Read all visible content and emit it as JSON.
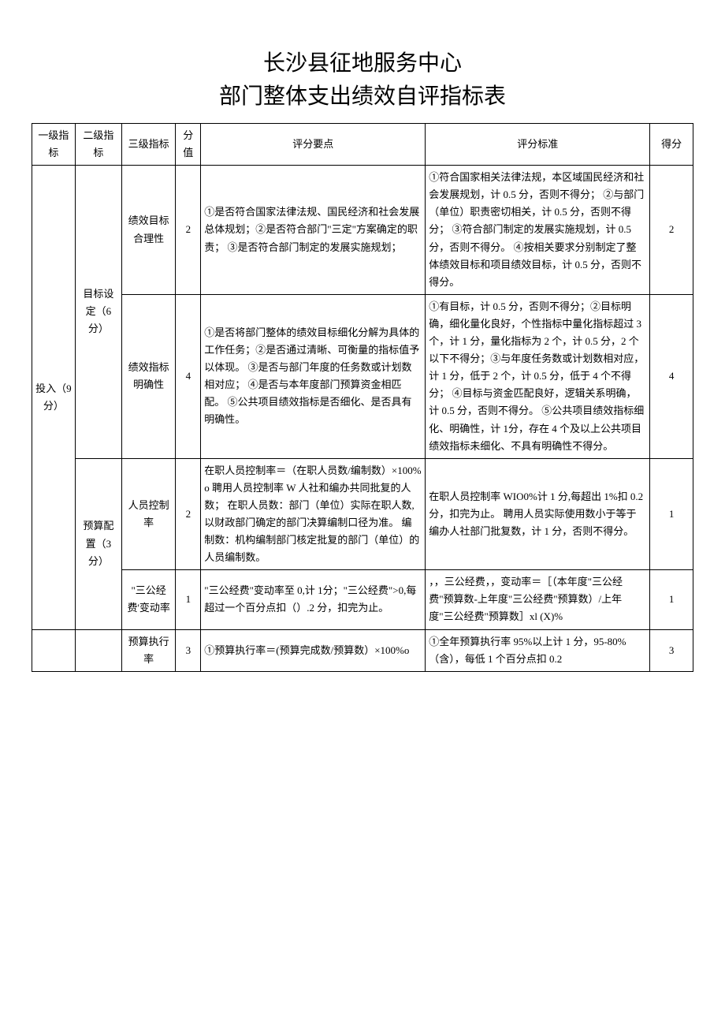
{
  "title": {
    "line1": "长沙县征地服务中心",
    "line2": "部门整体支出绩效自评指标表"
  },
  "headers": {
    "level1": "一级指标",
    "level2": "二级指标",
    "level3": "三级指标",
    "maxScore": "分值",
    "keyPoints": "评分要点",
    "criteria": "评分标准",
    "score": "得分"
  },
  "rows": [
    {
      "l1": "投入（9 分）",
      "l2": "目标设定（6分）",
      "l3": "绩效目标合理性",
      "max": "2",
      "points": "①是否符合国家法律法规、国民经济和社会发展总体规划；②是否符合部门\"三定\"方案确定的职责；\n③是否符合部门制定的发展实施规划；",
      "criteria": "①符合国家相关法律法规，本区域国民经济和社会发展规划，计 0.5 分，否则不得分；\n②与部门（单位）职责密切相关，计 0.5 分，否则不得分；\n③符合部门制定的发展实施规划，计 0.5 分，否则不得分。\n④按相关要求分别制定了整体绩效目标和项目绩效目标，计 0.5 分，否则不得分。",
      "score": "2"
    },
    {
      "l3": "绩效指标明确性",
      "max": "4",
      "points": "①是否将部门整体的绩效目标细化分解为具体的工作任务；②是否通过清晰、可衡量的指标值予以体现。\n③是否与部门年度的任务数或计划数相对应；\n④是否与本年度部门预算资金相匹配。\n⑤公共项目绩效指标是否细化、是否具有明确性。",
      "criteria": "①有目标，计 0.5 分，否则不得分；②目标明确，细化量化良好，个性指标中量化指标超过 3 个，计 1 分，量化指标为 2 个，计 0.5 分，2 个以下不得分；③与年度任务数或计划数相对应，计 1 分，低于 2 个，计 0.5 分，低于 4 个不得分；\n④目标与资金匹配良好，逻辑关系明确，计 0.5 分，否则不得分。\n⑤公共项目绩效指标细化、明确性，计 1分，存在 4 个及以上公共项目绩效指标未细化、不具有明确性不得分。",
      "score": "4"
    },
    {
      "l2": "预算配置（3分）",
      "l3": "人员控制率",
      "max": "2",
      "points": "在职人员控制率＝（在职人员数/编制数）×100%o\n聘用人员控制率 W 人社和编办共同批复的人数；\n在职人员数：部门（单位）实际在职人数,以财政部门确定的部门决算编制口径为准。\n编制数：机构编制部门核定批复的部门（单位）的人员编制数。",
      "criteria": "在职人员控制率 WIO0%计 1 分,每超出 1%扣 0.2 分，扣完为止。\n聘用人员实际使用数小于等于编办人社部门批复数，计 1 分，否则不得分。",
      "score": "1"
    },
    {
      "l3": "\"三公经费'变动率",
      "max": "1",
      "points": "\"三公经费\"变动率至 0,计 1分；\"三公经费\">0,每超过一个百分点扣（）.2 分，扣完为止。",
      "criteria": "，，三公经费，，变动率＝［（本年度\"三公经费\"预算数-上年度\"三公经费\"预算数）/上年度\"三公经费\"预算数］xl (X)%",
      "score": "1"
    },
    {
      "l3": "预算执行率",
      "max": "3",
      "points": "①预算执行率＝(预算完成数/预算数）×100%o",
      "criteria": "①全年预算执行率 95%以上计 1 分，95-80%（含），每低 1 个百分点扣 0.2",
      "score": "3"
    }
  ]
}
